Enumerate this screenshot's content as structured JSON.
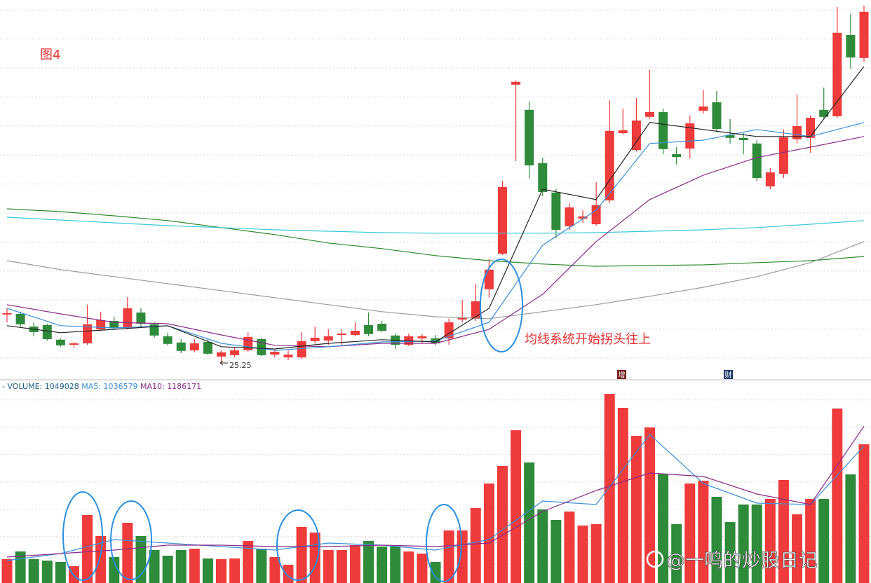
{
  "chart_data": [
    {
      "type": "candlestick",
      "title": "图4",
      "annotation": "均线系统开始拐头往上",
      "markers": [
        "增",
        "财"
      ],
      "up_color": "#ef3b3b",
      "down_color": "#2e8b3a",
      "grid": true,
      "ylim": [
        24.7,
        38.2
      ],
      "open": [
        26.98,
        27.0,
        26.55,
        26.6,
        26.08,
        25.9,
        25.95,
        26.45,
        26.75,
        26.5,
        27.05,
        26.63,
        26.2,
        25.98,
        25.7,
        26.0,
        25.48,
        25.53,
        25.7,
        26.1,
        25.55,
        25.45,
        25.45,
        26.03,
        26.05,
        26.25,
        26.25,
        26.6,
        26.65,
        26.23,
        25.9,
        26.13,
        26.13,
        26.13,
        26.8,
        26.83,
        27.88,
        29.15,
        35.18,
        34.28,
        32.38,
        31.33,
        30.13,
        30.4,
        30.2,
        31.05,
        33.45,
        32.85,
        34.03,
        34.2,
        32.7,
        32.9,
        34.25,
        34.55,
        33.38,
        33.28,
        33.08,
        31.55,
        32.0,
        33.23,
        33.28,
        34.28,
        34.05,
        36.95,
        36.13
      ],
      "high": [
        27.2,
        27.08,
        26.7,
        26.65,
        26.13,
        26.0,
        27.33,
        27.08,
        26.9,
        27.6,
        27.2,
        26.7,
        26.33,
        26.1,
        26.1,
        26.1,
        25.7,
        25.8,
        26.35,
        26.15,
        25.7,
        25.7,
        26.35,
        26.55,
        26.45,
        26.45,
        26.7,
        27.05,
        26.75,
        26.3,
        26.3,
        26.28,
        26.25,
        26.83,
        27.5,
        28.08,
        28.95,
        31.75,
        35.33,
        34.58,
        32.58,
        31.45,
        30.95,
        30.7,
        31.7,
        34.63,
        34.33,
        34.7,
        35.7,
        34.33,
        32.95,
        34.08,
        35.0,
        34.95,
        33.95,
        33.45,
        33.2,
        32.2,
        33.58,
        34.83,
        34.08,
        35.08,
        37.95,
        37.7,
        38.0
      ],
      "low": [
        26.7,
        26.55,
        26.2,
        26.05,
        25.83,
        25.8,
        25.9,
        26.4,
        26.45,
        26.45,
        26.55,
        26.15,
        25.88,
        25.6,
        25.63,
        25.53,
        25.25,
        25.45,
        25.65,
        25.5,
        25.45,
        25.35,
        25.4,
        25.95,
        25.9,
        25.9,
        26.2,
        26.2,
        26.35,
        25.75,
        25.85,
        25.95,
        25.88,
        25.9,
        26.7,
        26.75,
        27.58,
        29.1,
        32.45,
        31.83,
        31.2,
        29.7,
        30.0,
        30.25,
        30.15,
        30.95,
        33.4,
        32.8,
        33.95,
        32.7,
        32.33,
        32.55,
        34.15,
        33.5,
        33.08,
        32.7,
        31.75,
        31.45,
        31.85,
        33.08,
        32.75,
        33.95,
        34.0,
        35.75,
        36.0
      ],
      "close": [
        27.03,
        26.63,
        26.35,
        26.1,
        25.88,
        25.95,
        26.63,
        26.78,
        26.5,
        27.2,
        26.65,
        26.23,
        25.93,
        25.68,
        25.95,
        25.58,
        25.63,
        25.7,
        26.18,
        25.53,
        25.65,
        25.55,
        26.03,
        26.15,
        26.2,
        26.3,
        26.4,
        26.28,
        26.4,
        25.9,
        26.2,
        26.2,
        25.95,
        26.7,
        26.88,
        27.45,
        28.58,
        31.53,
        35.28,
        32.3,
        31.35,
        30.0,
        30.8,
        30.48,
        30.88,
        33.53,
        33.55,
        33.9,
        34.2,
        32.88,
        32.6,
        33.8,
        34.4,
        33.6,
        33.28,
        33.2,
        31.85,
        32.05,
        33.3,
        33.7,
        34.0,
        34.03,
        37.03,
        36.15,
        37.78
      ],
      "series": [
        {
          "color": "#2a8a2a",
          "x": [
            0,
            4,
            8,
            12,
            16,
            20,
            24,
            28,
            32,
            36,
            40,
            44,
            48,
            52,
            56,
            60,
            64
          ],
          "values": [
            30.75,
            30.65,
            30.5,
            30.33,
            30.08,
            29.83,
            29.53,
            29.33,
            29.08,
            28.9,
            28.78,
            28.7,
            28.73,
            28.75,
            28.83,
            28.9,
            29.05
          ]
        },
        {
          "color": "#35c8d8",
          "x": [
            0,
            4,
            8,
            12,
            16,
            20,
            24,
            28,
            32,
            36,
            40,
            44,
            48,
            52,
            56,
            60,
            64
          ],
          "values": [
            30.45,
            30.35,
            30.25,
            30.15,
            30.08,
            30.0,
            29.95,
            29.9,
            29.88,
            29.88,
            29.88,
            29.9,
            29.95,
            30.0,
            30.08,
            30.2,
            30.33
          ]
        },
        {
          "color": "#9a9a9a",
          "x": [
            0,
            4,
            8,
            12,
            16,
            20,
            24,
            28,
            32,
            36,
            40,
            44,
            48,
            52,
            56,
            60,
            64
          ],
          "values": [
            28.9,
            28.58,
            28.33,
            28.08,
            27.83,
            27.58,
            27.33,
            27.08,
            26.9,
            26.83,
            27.08,
            27.33,
            27.63,
            27.95,
            28.33,
            28.83,
            29.58
          ]
        },
        {
          "color": "#8a2a8a",
          "x": [
            0,
            4,
            8,
            12,
            16,
            20,
            24,
            28,
            32,
            36,
            40,
            44,
            48,
            52,
            56,
            60,
            64
          ],
          "values": [
            27.33,
            27.0,
            26.7,
            26.65,
            26.25,
            25.88,
            25.83,
            25.95,
            25.95,
            26.45,
            27.7,
            29.58,
            31.08,
            31.95,
            32.58,
            32.95,
            33.33
          ]
        },
        {
          "color": "#3a8fd8",
          "x": [
            0,
            4,
            8,
            12,
            16,
            20,
            24,
            28,
            32,
            36,
            40,
            44,
            48,
            52,
            56,
            60,
            64
          ],
          "values": [
            27.2,
            26.58,
            26.5,
            26.58,
            25.95,
            25.7,
            25.83,
            26.0,
            26.03,
            26.7,
            29.45,
            30.7,
            33.08,
            33.2,
            33.58,
            33.33,
            33.83
          ]
        },
        {
          "color": "#222222",
          "x": [
            0,
            4,
            8,
            12,
            16,
            20,
            24,
            28,
            32,
            36,
            40,
            44,
            48,
            52,
            56,
            60,
            64
          ],
          "values": [
            26.58,
            26.33,
            26.45,
            26.58,
            25.83,
            25.75,
            25.95,
            26.08,
            26.0,
            27.2,
            31.45,
            31.08,
            33.83,
            33.58,
            33.33,
            33.33,
            35.83
          ]
        }
      ]
    },
    {
      "type": "bar",
      "name": "- VOLUME:",
      "grid": true,
      "ylim": [
        0,
        1441600
      ],
      "values": [
        180200,
        238500,
        180200,
        169600,
        159000,
        127200,
        514100,
        355100,
        196100,
        455800,
        355100,
        249100,
        206700,
        249100,
        259700,
        185500,
        180200,
        185500,
        318000,
        259700,
        196100,
        137800,
        424000,
        381600,
        249100,
        249100,
        286200,
        318000,
        275600,
        275600,
        238500,
        222600,
        159000,
        397500,
        397500,
        567100,
        752600,
        885100,
        1155400,
        911600,
        556500,
        477000,
        540600,
        434600,
        445200,
        1431000,
        1325000,
        1113000,
        1176600,
        826800,
        445200,
        752600,
        773800,
        651900,
        461100,
        593600,
        593600,
        636000,
        779100,
        519400,
        636000,
        636000,
        1319700,
        821500,
        1049028
      ],
      "series": [
        {
          "name": "MA5:",
          "color": "#3a8fd8",
          "x": [
            0,
            4,
            8,
            12,
            16,
            20,
            24,
            28,
            32,
            36,
            40,
            44,
            48,
            52,
            56,
            60,
            64
          ],
          "values": [
            169600,
            222600,
            328600,
            302100,
            275600,
            249100,
            302100,
            286200,
            249100,
            328600,
            620100,
            593600,
            1123600,
            752600,
            604200,
            593600,
            1036579
          ]
        },
        {
          "name": "MA10:",
          "color": "#8a2a8a",
          "x": [
            0,
            4,
            8,
            12,
            16,
            20,
            24,
            28,
            32,
            36,
            40,
            44,
            48,
            52,
            56,
            60,
            64
          ],
          "values": [
            196100,
            222600,
            249100,
            286200,
            286200,
            275600,
            275600,
            286200,
            275600,
            302100,
            540600,
            699600,
            832100,
            805600,
            673100,
            593600,
            1186171
          ]
        }
      ]
    }
  ],
  "watermark": "@一鸣的炒股日记"
}
